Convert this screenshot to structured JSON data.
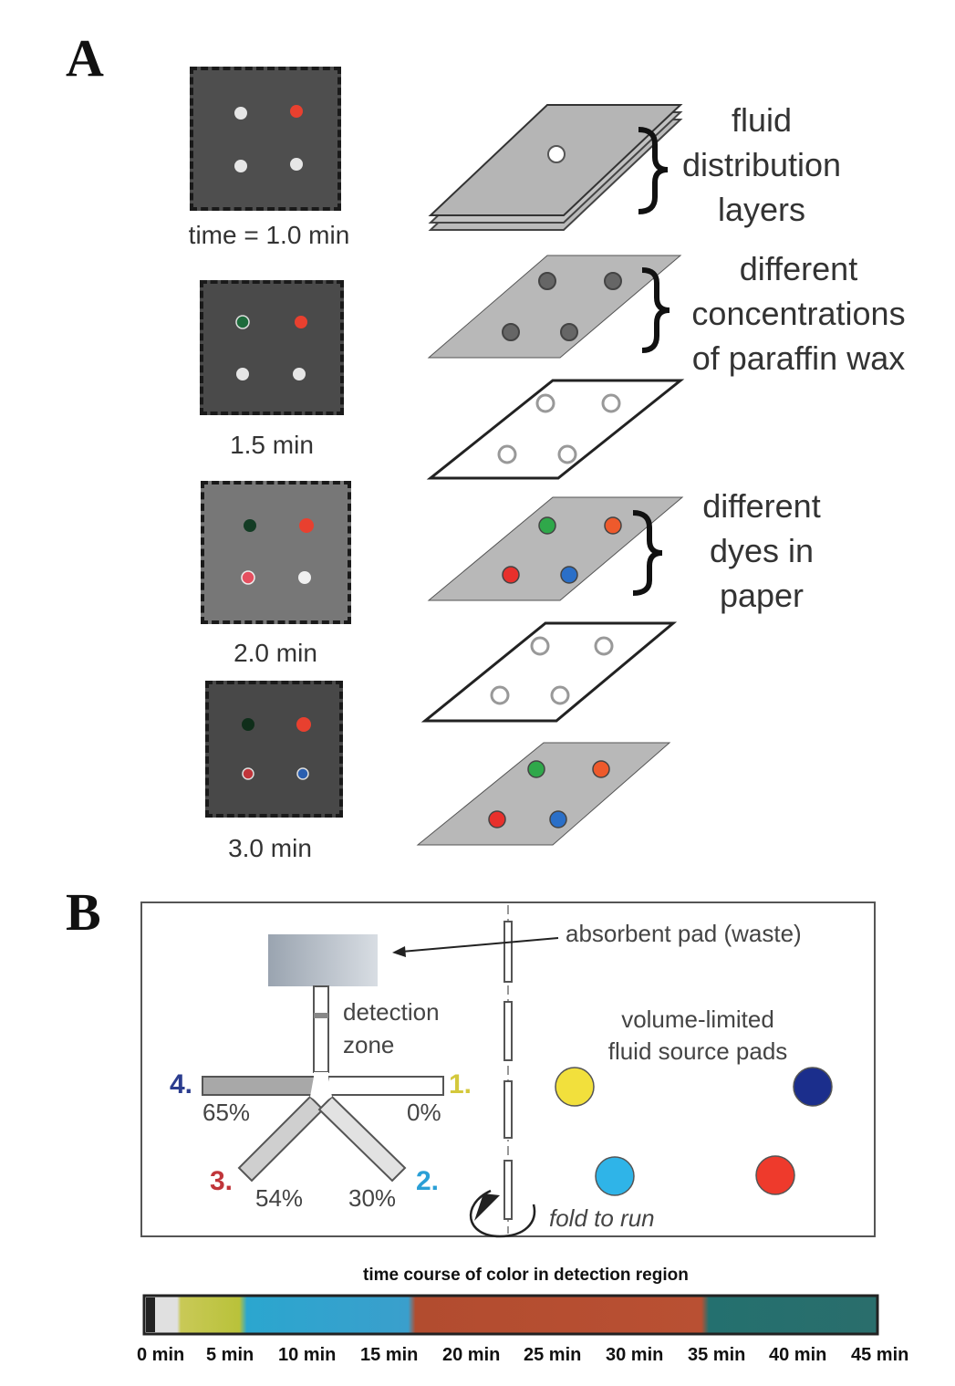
{
  "panel_a": {
    "label": "A",
    "time_labels": [
      "time = 1.0 min",
      "1.5 min",
      "2.0 min",
      "3.0 min"
    ],
    "layer_labels": {
      "fluid": [
        "fluid",
        "distribution",
        "layers"
      ],
      "wax": [
        "different",
        "concentrations",
        "of paraffin wax"
      ],
      "dyes": [
        "different",
        "dyes in",
        "paper"
      ]
    }
  },
  "panel_b": {
    "label": "B",
    "absorbent_pad": "absorbent pad (waste)",
    "detection": [
      "detection",
      "zone"
    ],
    "source_pads": [
      "volume-limited",
      "fluid source pads"
    ],
    "fold": "fold to run",
    "channels": [
      {
        "num": "1.",
        "pct": "0%",
        "color": "#d4c83c"
      },
      {
        "num": "2.",
        "pct": "30%",
        "color": "#2a9fd6"
      },
      {
        "num": "3.",
        "pct": "54%",
        "color": "#c0353a"
      },
      {
        "num": "4.",
        "pct": "65%",
        "color": "#2b3d8f"
      }
    ],
    "pad_colors": {
      "yellow": "#f2e03c",
      "navy": "#1b2e8c",
      "cyan": "#2fb4e8",
      "red": "#ee3a2c"
    }
  },
  "timecourse": {
    "title": "time course of color in detection region",
    "ticks": [
      "0 min",
      "5 min",
      "10 min",
      "15 min",
      "20 min",
      "25 min",
      "30 min",
      "35 min",
      "40 min",
      "45 min"
    ]
  }
}
